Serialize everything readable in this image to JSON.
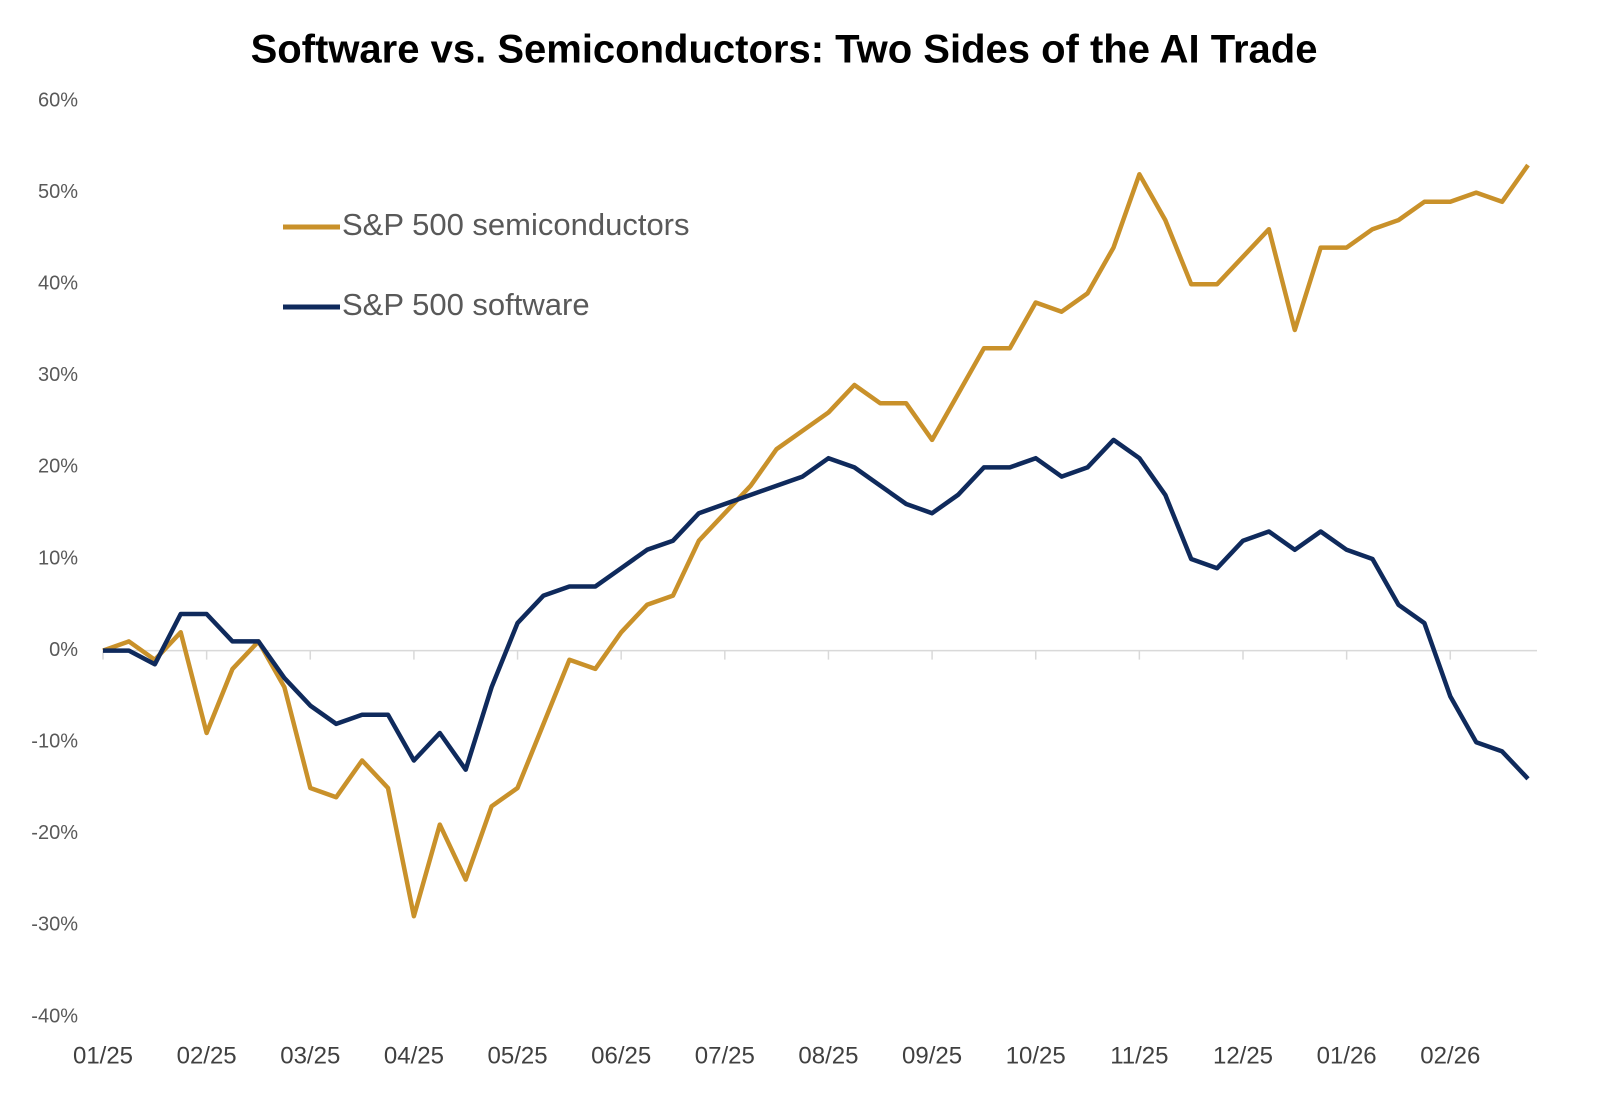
{
  "chart_data": {
    "type": "line",
    "title": "Software vs. Semiconductors: Two Sides of the AI Trade",
    "categories": [
      "01/25",
      null,
      null,
      null,
      "02/25",
      null,
      null,
      null,
      "03/25",
      null,
      null,
      null,
      "04/25",
      null,
      null,
      null,
      "05/25",
      null,
      null,
      null,
      "06/25",
      null,
      null,
      null,
      "07/25",
      null,
      null,
      null,
      "08/25",
      null,
      null,
      null,
      "09/25",
      null,
      null,
      null,
      "10/25",
      null,
      null,
      null,
      "11/25",
      null,
      null,
      null,
      "12/25",
      null,
      null,
      null,
      "01/26",
      null,
      null,
      null,
      "02/26",
      null,
      null,
      null
    ],
    "series": [
      {
        "name": "S&P 500 semiconductors",
        "color": "#c9912a",
        "values": [
          0,
          1,
          -1,
          2,
          -9,
          -2,
          1,
          -4,
          -15,
          -16,
          -12,
          -15,
          -29,
          -19,
          -25,
          -17,
          -15,
          -8,
          -1,
          -2,
          2,
          5,
          6,
          12,
          15,
          18,
          22,
          24,
          26,
          29,
          27,
          27,
          23,
          28,
          33,
          33,
          38,
          37,
          39,
          44,
          52,
          47,
          40,
          40,
          43,
          46,
          35,
          44,
          44,
          46,
          47,
          49,
          49,
          50,
          49,
          53
        ]
      },
      {
        "name": "S&P 500 software",
        "color": "#0f2a5c",
        "values": [
          0,
          0,
          -1.5,
          4,
          4,
          1,
          1,
          -3,
          -6,
          -8,
          -7,
          -7,
          -12,
          -9,
          -13,
          -4,
          3,
          6,
          7,
          7,
          9,
          11,
          12,
          15,
          16,
          17,
          18,
          19,
          21,
          20,
          18,
          16,
          15,
          17,
          20,
          20,
          21,
          19,
          20,
          23,
          21,
          17,
          10,
          9,
          12,
          13,
          11,
          13,
          11,
          10,
          5,
          3,
          -5,
          -10,
          -11,
          -14
        ]
      }
    ],
    "ylim": [
      -40,
      60
    ],
    "yticks": [
      {
        "value": -40,
        "label": "-40%"
      },
      {
        "value": -30,
        "label": "-30%"
      },
      {
        "value": -20,
        "label": "-20%"
      },
      {
        "value": -10,
        "label": "-10%"
      },
      {
        "value": 0,
        "label": "0%"
      },
      {
        "value": 10,
        "label": "10%"
      },
      {
        "value": 20,
        "label": "20%"
      },
      {
        "value": 30,
        "label": "30%"
      },
      {
        "value": 40,
        "label": "40%"
      },
      {
        "value": 50,
        "label": "50%"
      },
      {
        "value": 60,
        "label": "60%"
      }
    ],
    "grid": false
  }
}
